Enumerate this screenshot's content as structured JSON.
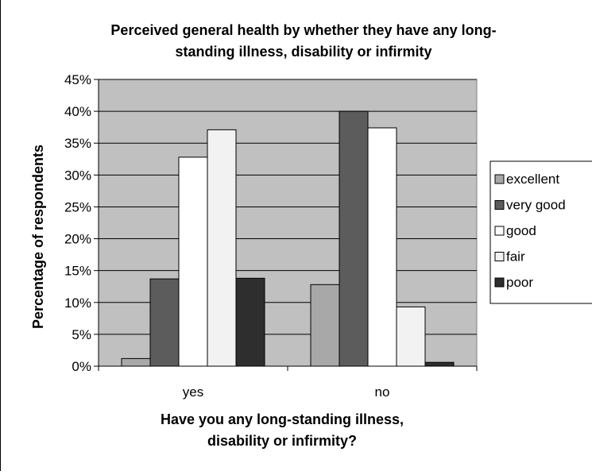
{
  "chart_data": {
    "type": "bar",
    "title_lines": [
      "Perceived general health by whether they have any long-",
      "standing illness, disability or infirmity"
    ],
    "xlabel_lines": [
      "Have you any long-standing illness,",
      "disability or infirmity?"
    ],
    "ylabel": "Percentage of respondents",
    "categories": [
      "yes",
      "no"
    ],
    "ylim": [
      0,
      45
    ],
    "yticks": [
      "0%",
      "5%",
      "10%",
      "15%",
      "20%",
      "25%",
      "30%",
      "35%",
      "40%",
      "45%"
    ],
    "grid": true,
    "legend_position": "right",
    "series": [
      {
        "name": "excellent",
        "values": [
          1.2,
          12.8
        ],
        "color": "#a8a8a8"
      },
      {
        "name": "very good",
        "values": [
          13.7,
          40.0
        ],
        "color": "#5c5c5c"
      },
      {
        "name": "good",
        "values": [
          32.8,
          37.4
        ],
        "color": "#ffffff"
      },
      {
        "name": "fair",
        "values": [
          37.1,
          9.3
        ],
        "color": "#f2f2f2"
      },
      {
        "name": "poor",
        "values": [
          13.8,
          0.6
        ],
        "color": "#2e2e2e"
      }
    ],
    "plot_background": "#c0c0c0"
  }
}
